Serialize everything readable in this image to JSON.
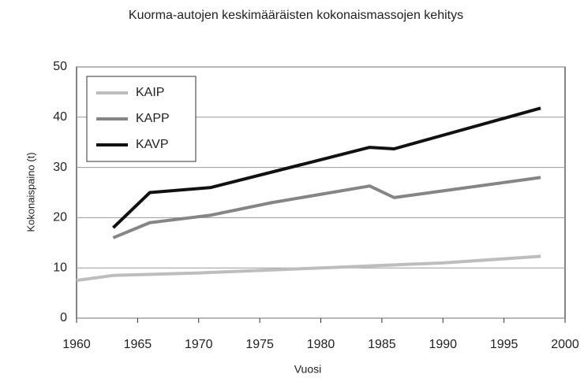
{
  "chart_data": {
    "type": "line",
    "title": "Kuorma-autojen keskimääräisten kokonaismassojen kehitys",
    "xlabel": "Vuosi",
    "ylabel": "Kokonaispaino (t)",
    "xlim": [
      1960,
      2000
    ],
    "xticks": [
      1960,
      1965,
      1970,
      1975,
      1980,
      1985,
      1990,
      1995,
      2000
    ],
    "ylim": [
      0,
      50
    ],
    "yticks": [
      0,
      10,
      20,
      30,
      40,
      50
    ],
    "grid": true,
    "legend": "upper left",
    "series": [
      {
        "name": "KAIP",
        "color": "#bdbdbd",
        "x": [
          1960,
          1963,
          1970,
          1980,
          1990,
          1998
        ],
        "values": [
          7.5,
          8.5,
          9,
          10,
          11,
          12.3
        ]
      },
      {
        "name": "KAPP",
        "color": "#858585",
        "x": [
          1963,
          1966,
          1971,
          1976,
          1984,
          1986,
          1998
        ],
        "values": [
          16,
          19,
          20.5,
          23,
          26.3,
          24,
          28
        ]
      },
      {
        "name": "KAVP",
        "color": "#111111",
        "x": [
          1963,
          1966,
          1971,
          1984,
          1986,
          1998
        ],
        "values": [
          18,
          25,
          26,
          34,
          33.7,
          41.8
        ]
      }
    ]
  }
}
